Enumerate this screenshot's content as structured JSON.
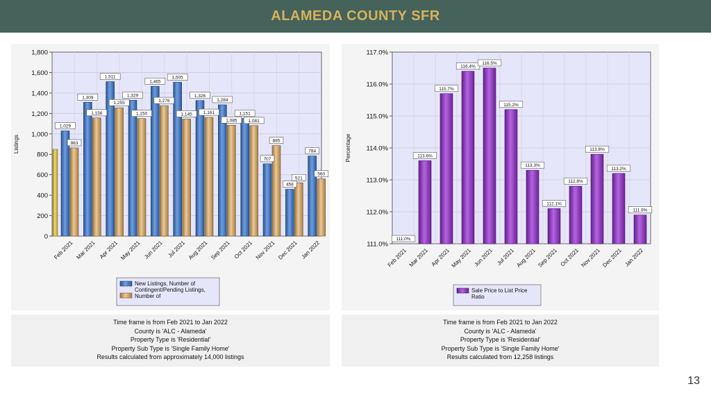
{
  "header": {
    "title": "ALAMEDA COUNTY SFR"
  },
  "page_number": "13",
  "charts": [
    {
      "info": {
        "line1": "Time frame is from Feb 2021 to Jan 2022",
        "line2": "County is 'ALC - Alameda'",
        "line3": "Property Type is 'Residential'",
        "line4": "Property Sub Type is 'Single Family Home'",
        "line5": "Results calculated from approximately 14,000 listings"
      }
    },
    {
      "info": {
        "line1": "Time frame is from Feb 2021 to Jan 2022",
        "line2": "County is 'ALC - Alameda'",
        "line3": "Property Type is 'Residential'",
        "line4": "Property Sub Type is 'Single Family Home'",
        "line5": "Results calculated from 12,258 listings"
      }
    }
  ],
  "chart_data": [
    {
      "type": "bar",
      "ylabel": "Listings",
      "ylim": [
        0,
        1800
      ],
      "yticks": [
        "0",
        "200",
        "400",
        "600",
        "800",
        "1,000",
        "1,200",
        "1,400",
        "1,600",
        "1,800"
      ],
      "categories": [
        "Feb 2021",
        "Mar 2021",
        "Apr 2021",
        "May 2021",
        "Jun 2021",
        "Jul 2021",
        "Aug 2021",
        "Sep 2021",
        "Oct 2021",
        "Nov 2021",
        "Dec 2021",
        "Jan 2022"
      ],
      "series": [
        {
          "name": "New Listings, Number of",
          "color": "#3f7fd9",
          "values": [
            1029,
            1309,
            1511,
            1329,
            1465,
            1505,
            1326,
            1284,
            1151,
            707,
            458,
            784
          ],
          "labels": [
            "1,029",
            "1,309",
            "1,511",
            "1,329",
            "1,465",
            "1,505",
            "1,326",
            "1,284",
            "1,151",
            "707",
            "458",
            "784"
          ]
        },
        {
          "name": "Contingent/Pending Listings, Number of",
          "color": "#e9b56c",
          "values": [
            863,
            1156,
            1255,
            1150,
            1276,
            1145,
            1161,
            1085,
            1081,
            885,
            521,
            560
          ],
          "labels": [
            "863",
            "1,156",
            "1,255",
            "1,150",
            "1,276",
            "1,145",
            "1,161",
            "1,085",
            "1,081",
            "885",
            "521",
            "560"
          ]
        }
      ],
      "legend": {
        "items": [
          "New Listings, Number of\nContingent/Pending Listings,\nNumber of"
        ],
        "placement": "bottom"
      },
      "highlight_bar": {
        "color": "#f0d040",
        "value": 850
      },
      "grid": true
    },
    {
      "type": "bar",
      "ylabel": "Percentage",
      "ylim": [
        111,
        117
      ],
      "yticks": [
        "111.0%",
        "112.0%",
        "113.0%",
        "114.0%",
        "115.0%",
        "116.0%",
        "117.0%"
      ],
      "categories": [
        "Feb 2021",
        "Mar 2021",
        "Apr 2021",
        "May 2021",
        "Jun 2021",
        "Jul 2021",
        "Aug 2021",
        "Sep 2021",
        "Oct 2021",
        "Nov 2021",
        "Dec 2021",
        "Jan 2022"
      ],
      "series": [
        {
          "name": "Sale Price to List Price Ratio",
          "color": "#9b30d8",
          "values": [
            111.0,
            113.6,
            115.7,
            116.4,
            116.5,
            115.2,
            113.3,
            112.1,
            112.8,
            113.8,
            113.2,
            111.9
          ],
          "labels": [
            "111.0%",
            "113.6%",
            "115.7%",
            "116.4%",
            "116.5%",
            "115.2%",
            "113.3%",
            "112.1%",
            "112.8%",
            "113.8%",
            "113.2%",
            "111.9%"
          ]
        }
      ],
      "legend": {
        "placement": "bottom"
      },
      "grid": true
    }
  ],
  "colors": {
    "banner": "#45635a",
    "title": "#d8b25c",
    "plot_bg": "#e6e6fa"
  }
}
